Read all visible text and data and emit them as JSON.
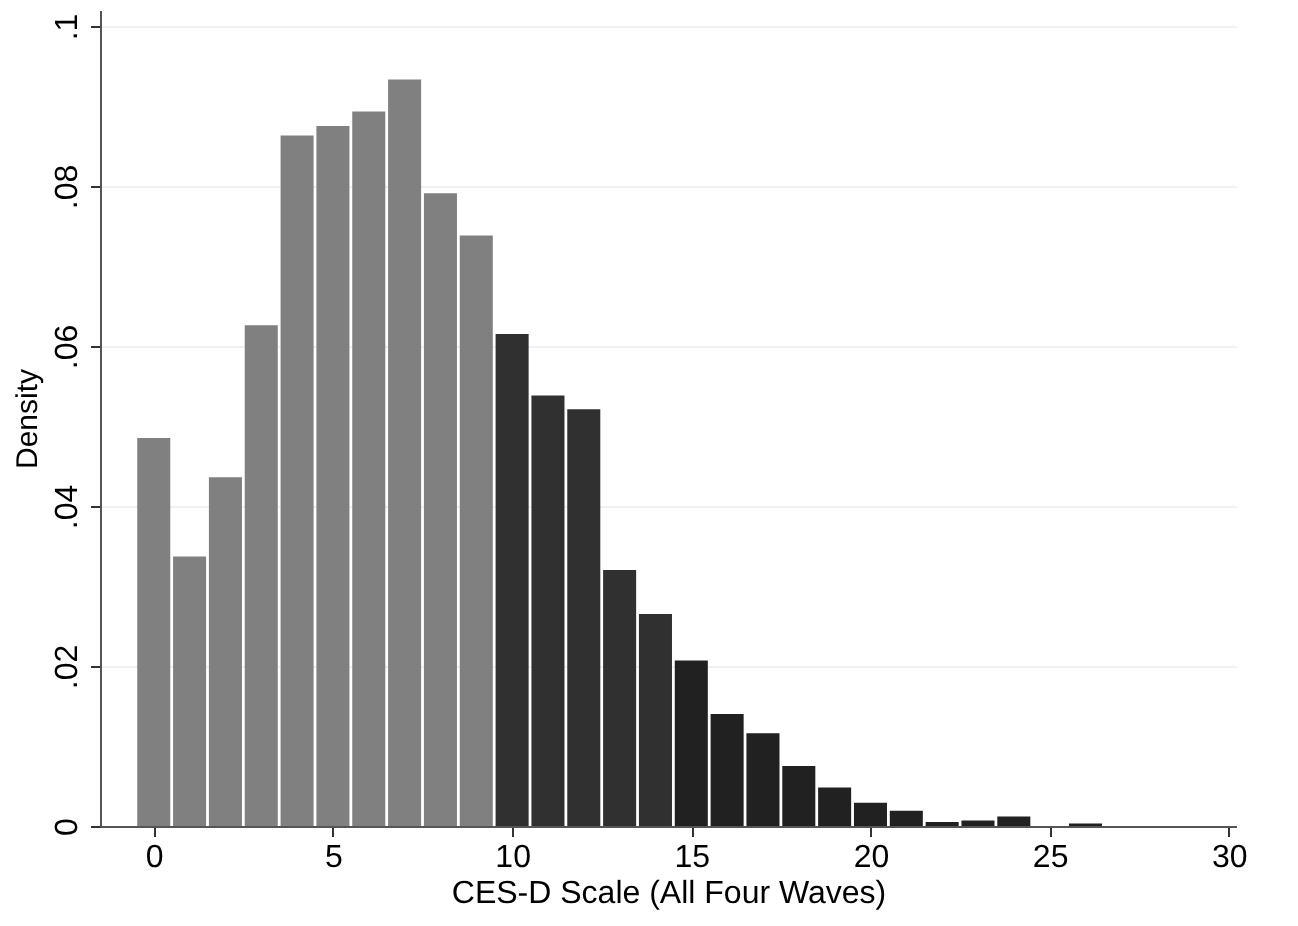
{
  "chart_data": {
    "type": "histogram",
    "xlabel": "CES-D Scale (All Four Waves)",
    "ylabel": "Density",
    "bins": [
      -0.5,
      0.5,
      1.5,
      2.5,
      3.5,
      4.5,
      5.5,
      6.5,
      7.5,
      8.5,
      9.5,
      10.5,
      11.5,
      12.5,
      13.5,
      14.5,
      15.5,
      16.5,
      17.5,
      18.5,
      19.5,
      20.5,
      21.5,
      22.5,
      23.5,
      24.5,
      25.5,
      26.5
    ],
    "values": [
      0.0485,
      0.0337,
      0.0436,
      0.0626,
      0.0863,
      0.0875,
      0.0893,
      0.0933,
      0.0791,
      0.0738,
      0.0615,
      0.0538,
      0.0521,
      0.032,
      0.0265,
      0.0207,
      0.014,
      0.0116,
      0.0075,
      0.0048,
      0.0029,
      0.0019,
      0.0005,
      0.0007,
      0.0012,
      null,
      0.0003
    ],
    "colors": [
      "#808080",
      "#808080",
      "#808080",
      "#808080",
      "#808080",
      "#808080",
      "#808080",
      "#808080",
      "#808080",
      "#808080",
      "#303030",
      "#303030",
      "#303030",
      "#303030",
      "#303030",
      "#212121",
      "#212121",
      "#212121",
      "#212121",
      "#212121",
      "#212121",
      "#212121",
      "#212121",
      "#212121",
      "#212121",
      "#212121",
      "#212121"
    ],
    "xlim": [
      -1.5,
      30.2
    ],
    "xticks": [
      0,
      5,
      10,
      15,
      20,
      25,
      30
    ],
    "ylim": [
      0,
      0.102
    ],
    "yticks": [
      0,
      {
        "value": 0.02,
        "label": ".02"
      },
      {
        "value": 0.04,
        "label": ".04"
      },
      {
        "value": 0.06,
        "label": ".06"
      },
      {
        "value": 0.08,
        "label": ".08"
      },
      {
        "value": 0.1,
        "label": ".1"
      }
    ],
    "grid": "y"
  }
}
